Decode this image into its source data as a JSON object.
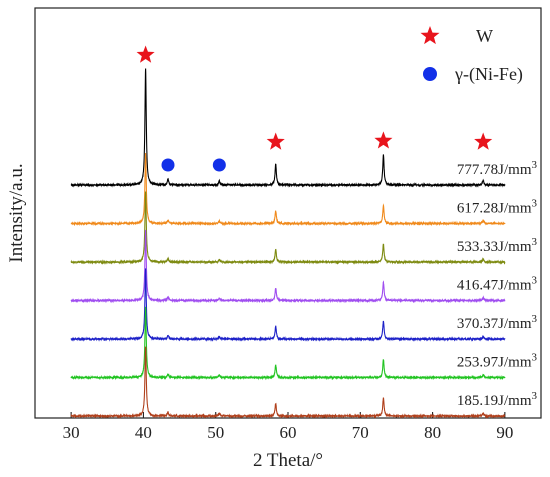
{
  "chart_data": {
    "type": "line",
    "xlabel": "2 Theta/°",
    "ylabel": "Intensity/a.u.",
    "xlim": [
      25,
      95
    ],
    "x_ticks": [
      30,
      40,
      50,
      60,
      70,
      80,
      90
    ],
    "x_range": [
      30,
      90
    ],
    "y_ticks_shown": false,
    "legend": {
      "placement": "top-right",
      "entries": [
        {
          "symbol": "star",
          "color": "#e8141c",
          "label": "W"
        },
        {
          "symbol": "circle",
          "color": "#1230e8",
          "label": "γ-(Ni-Fe)"
        }
      ]
    },
    "peaks": [
      {
        "position": 40.3,
        "phase": "W",
        "relative_height": 1.0
      },
      {
        "position": 43.4,
        "phase": "γ-(Ni-Fe)",
        "relative_height": 0.05
      },
      {
        "position": 50.5,
        "phase": "γ-(Ni-Fe)",
        "relative_height": 0.035
      },
      {
        "position": 58.3,
        "phase": "W",
        "relative_height": 0.18
      },
      {
        "position": 73.2,
        "phase": "W",
        "relative_height": 0.26
      },
      {
        "position": 87.0,
        "phase": "W",
        "relative_height": 0.04
      }
    ],
    "markers": [
      {
        "phase": "W",
        "symbol": "star",
        "x": 40.3
      },
      {
        "phase": "γ-(Ni-Fe)",
        "symbol": "circle",
        "x": 43.4
      },
      {
        "phase": "γ-(Ni-Fe)",
        "symbol": "circle",
        "x": 50.5
      },
      {
        "phase": "W",
        "symbol": "star",
        "x": 58.3
      },
      {
        "phase": "W",
        "symbol": "star",
        "x": 73.2
      },
      {
        "phase": "W",
        "symbol": "star",
        "x": 87.0
      }
    ],
    "series": [
      {
        "label": "777.78J/mm",
        "exponent": "3",
        "color": "#000000"
      },
      {
        "label": "617.28J/mm",
        "exponent": "3",
        "color": "#f08a1c"
      },
      {
        "label": "533.33J/mm",
        "exponent": "3",
        "color": "#7d8a10"
      },
      {
        "label": "416.47J/mm",
        "exponent": "3",
        "color": "#a04ef0"
      },
      {
        "label": "370.37J/mm",
        "exponent": "3",
        "color": "#1c20c8"
      },
      {
        "label": "253.97J/mm",
        "exponent": "3",
        "color": "#22c422"
      },
      {
        "label": "185.19J/mm",
        "exponent": "3",
        "color": "#b0401c"
      }
    ]
  }
}
